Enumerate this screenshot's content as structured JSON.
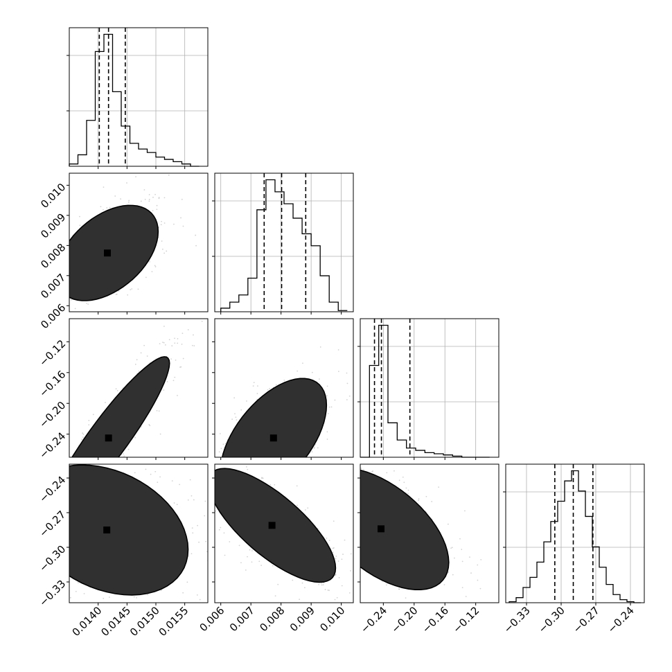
{
  "chart_data": {
    "type": "corner",
    "parameters": [
      {
        "ticks": [
          0.014,
          0.0145,
          0.015,
          0.0155
        ],
        "tick_labels": [
          "0.0140",
          "0.0145",
          "0.0150",
          "0.0155"
        ],
        "range": [
          0.0135,
          0.0159
        ]
      },
      {
        "ticks": [
          0.006,
          0.007,
          0.008,
          0.009,
          0.01
        ],
        "tick_labels": [
          "0.006",
          "0.007",
          "0.008",
          "0.009",
          "0.010"
        ],
        "range": [
          0.0058,
          0.0104
        ]
      },
      {
        "ticks": [
          -0.24,
          -0.2,
          -0.16,
          -0.12
        ],
        "tick_labels": [
          "−0.24",
          "−0.20",
          "−0.16",
          "−0.12"
        ],
        "range": [
          -0.27,
          -0.09
        ]
      },
      {
        "ticks": [
          -0.33,
          -0.3,
          -0.27,
          -0.24
        ],
        "tick_labels": [
          "−0.33",
          "−0.30",
          "−0.27",
          "−0.24"
        ],
        "range": [
          -0.348,
          -0.228
        ]
      }
    ],
    "diagonal": [
      {
        "bins": [
          0.0135,
          0.01365,
          0.0138,
          0.01395,
          0.0141,
          0.01425,
          0.0144,
          0.01455,
          0.0147,
          0.01485,
          0.015,
          0.01515,
          0.0153,
          0.01545,
          0.0156,
          0.01575
        ],
        "counts": [
          2,
          10,
          40,
          100,
          115,
          65,
          35,
          20,
          15,
          12,
          8,
          6,
          4,
          2,
          0
        ],
        "quantiles": [
          0.01402,
          0.01418,
          0.01447
        ]
      },
      {
        "bins": [
          0.006,
          0.0063,
          0.0066,
          0.0069,
          0.0072,
          0.0075,
          0.0078,
          0.0081,
          0.0084,
          0.0087,
          0.009,
          0.0093,
          0.0096,
          0.0099,
          0.0102
        ],
        "counts": [
          3,
          8,
          14,
          28,
          85,
          110,
          100,
          90,
          78,
          65,
          55,
          30,
          8,
          1
        ],
        "quantiles": [
          0.00744,
          0.00802,
          0.00882
        ]
      },
      {
        "bins": [
          -0.27,
          -0.258,
          -0.246,
          -0.234,
          -0.222,
          -0.21,
          -0.198,
          -0.186,
          -0.174,
          -0.162,
          -0.15,
          -0.138,
          -0.126,
          -0.114,
          -0.102
        ],
        "counts": [
          0,
          80,
          115,
          30,
          15,
          8,
          6,
          4,
          3,
          2,
          1,
          0,
          0,
          0
        ],
        "quantiles": [
          -0.2515,
          -0.2425,
          -0.2055
        ]
      },
      {
        "bins": [
          -0.345,
          -0.339,
          -0.333,
          -0.327,
          -0.321,
          -0.315,
          -0.309,
          -0.303,
          -0.297,
          -0.291,
          -0.285,
          -0.279,
          -0.273,
          -0.267,
          -0.261,
          -0.255,
          -0.249,
          -0.243,
          -0.237,
          -0.231
        ],
        "counts": [
          1,
          5,
          15,
          25,
          40,
          60,
          80,
          100,
          120,
          130,
          110,
          85,
          55,
          35,
          18,
          8,
          3,
          1,
          0
        ],
        "quantiles": [
          -0.3055,
          -0.2895,
          -0.2725
        ]
      }
    ],
    "pairs": [
      {
        "x": 0,
        "y": 1,
        "center": [
          0.01416,
          0.00775
        ],
        "sd": [
          0.00025,
          0.00045
        ],
        "corr": 0.45
      },
      {
        "x": 0,
        "y": 2,
        "center": [
          0.01418,
          -0.245
        ],
        "sd": [
          0.0003,
          0.03
        ],
        "corr": 0.92
      },
      {
        "x": 1,
        "y": 2,
        "center": [
          0.00775,
          -0.245
        ],
        "sd": [
          0.0005,
          0.022
        ],
        "corr": 0.55
      },
      {
        "x": 0,
        "y": 3,
        "center": [
          0.01415,
          -0.285
        ],
        "sd": [
          0.0004,
          0.016
        ],
        "corr": -0.3
      },
      {
        "x": 1,
        "y": 3,
        "center": [
          0.0077,
          -0.281
        ],
        "sd": [
          0.0006,
          0.014
        ],
        "corr": -0.75
      },
      {
        "x": 2,
        "y": 3,
        "center": [
          -0.243,
          -0.284
        ],
        "sd": [
          0.025,
          0.015
        ],
        "corr": -0.55
      }
    ],
    "contour_levels": [
      0.5,
      1.0,
      1.5,
      2.0
    ],
    "grid": true,
    "colors": {
      "line": "#000000",
      "grid": "#b0b0b0",
      "scatter": "#7f7f7f"
    }
  }
}
